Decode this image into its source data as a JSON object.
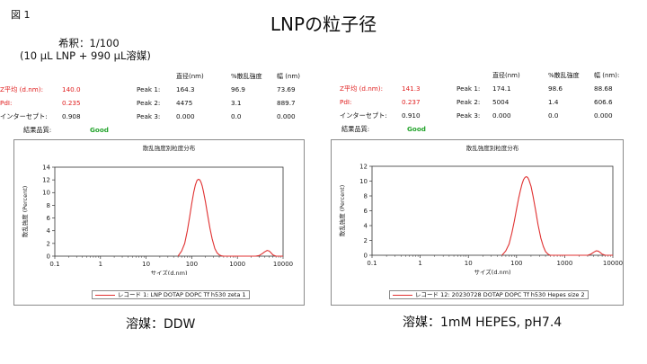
{
  "figure_label": "図 1",
  "title": "LNPの粒子径",
  "dilution": {
    "line1": "希釈：1/100",
    "line2": "(10 μL LNP + 990 μL溶媒)"
  },
  "left_summary": {
    "z_avg_label": "Z平均 (d.nm):",
    "z_avg": "140.0",
    "pdi_label": "PdI:",
    "pdi": "0.235",
    "intercept_label": "インターセプト:",
    "intercept": "0.908",
    "quality_label": "結果品質:",
    "quality": "Good",
    "col_headers": [
      "直径(nm)",
      "%散乱強度",
      "幅 (nm)"
    ],
    "peaks": [
      {
        "label": "Peak 1:",
        "values": [
          "164.3",
          "96.9",
          "73.69"
        ]
      },
      {
        "label": "Peak 2:",
        "values": [
          "4475",
          "3.1",
          "889.7"
        ]
      },
      {
        "label": "Peak 3:",
        "values": [
          "0.000",
          "0.0",
          "0.000"
        ]
      }
    ]
  },
  "right_summary": {
    "z_avg_label": "Z平均 (d.nm):",
    "z_avg": "141.3",
    "pdi_label": "PdI:",
    "pdi": "0.237",
    "intercept_label": "インターセプト:",
    "intercept": "0.910",
    "quality_label": "結果品質:",
    "quality": "Good",
    "col_headers": [
      "直径(nm)",
      "%散乱強度",
      "幅 (nm):"
    ],
    "peaks": [
      {
        "label": "Peak 1:",
        "values": [
          "174.1",
          "98.6",
          "88.68"
        ]
      },
      {
        "label": "Peak 2:",
        "values": [
          "5004",
          "1.4",
          "606.6"
        ]
      },
      {
        "label": "Peak 3:",
        "values": [
          "0.000",
          "0.0",
          "0.000"
        ]
      }
    ]
  },
  "captions": {
    "left": "溶媒：DDW",
    "right": "溶媒：1mM HEPES, pH7.4"
  },
  "colors": {
    "curve": "#e03030",
    "axis": "#333333",
    "grid": "#d8d8d8",
    "good": "#22a32b",
    "accent_red": "#e02020"
  },
  "chart_data": [
    {
      "type": "line",
      "title": "散乱強度別粒度分布",
      "xlabel": "サイズ(d.nm)",
      "ylabel": "散乱強度 (Percent)",
      "x_scale": "log",
      "xlim": [
        0.1,
        10000
      ],
      "ylim": [
        0,
        14
      ],
      "x_ticks": [
        "0.1",
        "1",
        "10",
        "100",
        "1000",
        "10000"
      ],
      "y_ticks": [
        "0",
        "2",
        "4",
        "6",
        "8",
        "10",
        "12",
        "14"
      ],
      "grid": false,
      "legend": "bottom-center",
      "series": [
        {
          "name": "レコード 1: LNP DOTAP DOPC Tf h530 zeta 1",
          "x": [
            50,
            60,
            70,
            80,
            90,
            100,
            110,
            120,
            130,
            140,
            150,
            160,
            170,
            180,
            200,
            220,
            250,
            280,
            320,
            360,
            400,
            450,
            500,
            600,
            1000,
            2500,
            3000,
            3500,
            4000,
            4500,
            5000,
            5500,
            6000,
            7000,
            8000,
            10000
          ],
          "y": [
            0,
            0.8,
            2.0,
            4.0,
            6.2,
            8.3,
            10.0,
            11.2,
            11.9,
            12.1,
            12.0,
            11.6,
            11.0,
            10.2,
            8.5,
            6.7,
            4.4,
            2.7,
            1.2,
            0.5,
            0.2,
            0.05,
            0,
            0,
            0,
            0,
            0.1,
            0.4,
            0.7,
            0.9,
            0.8,
            0.5,
            0.2,
            0,
            0,
            0
          ]
        }
      ]
    },
    {
      "type": "line",
      "title": "散乱強度別粒度分布",
      "xlabel": "サイズ(d.nm)",
      "ylabel": "散乱強度 (Percent)",
      "x_scale": "log",
      "xlim": [
        0.1,
        10000
      ],
      "ylim": [
        0,
        12
      ],
      "x_ticks": [
        "0.1",
        "1",
        "10",
        "100",
        "1000",
        "10000"
      ],
      "y_ticks": [
        "0",
        "2",
        "4",
        "6",
        "8",
        "10",
        "12"
      ],
      "grid": false,
      "legend": "bottom-center",
      "series": [
        {
          "name": "レコード 12: 20230728 DOTAP DOPC Tf h530 Hepes size 2",
          "x": [
            50,
            60,
            70,
            80,
            90,
            100,
            110,
            120,
            130,
            140,
            150,
            160,
            170,
            180,
            200,
            220,
            250,
            280,
            320,
            360,
            400,
            450,
            500,
            600,
            1000,
            3000,
            3500,
            4000,
            4500,
            5000,
            5500,
            6000,
            7000,
            10000
          ],
          "y": [
            0,
            0.6,
            1.5,
            3.0,
            4.6,
            6.2,
            7.6,
            8.7,
            9.6,
            10.2,
            10.5,
            10.6,
            10.5,
            10.2,
            9.3,
            8.0,
            6.0,
            4.1,
            2.3,
            1.2,
            0.5,
            0.15,
            0,
            0,
            0,
            0,
            0.15,
            0.4,
            0.6,
            0.55,
            0.35,
            0.15,
            0,
            0
          ]
        }
      ]
    }
  ]
}
